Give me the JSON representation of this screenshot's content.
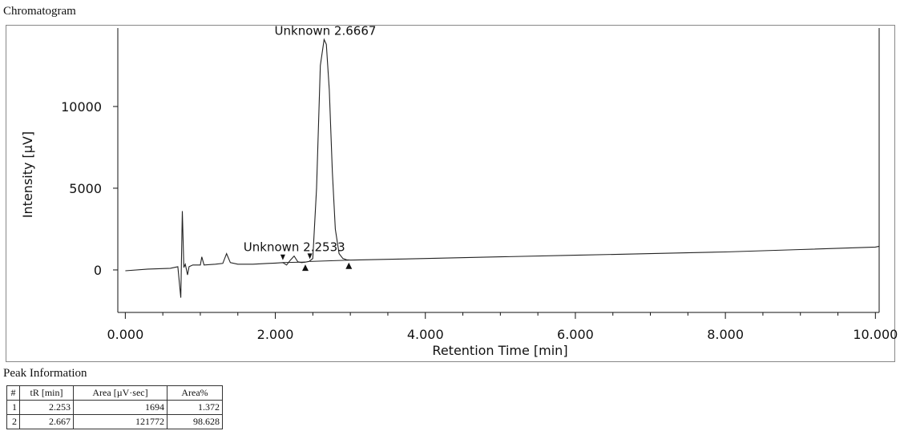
{
  "chart_data": {
    "type": "line",
    "title": "Chromatogram",
    "xlabel": "Retention Time [min]",
    "ylabel": "Intensity [µV]",
    "xlim": [
      -0.1,
      10.05
    ],
    "ylim": [
      -2600,
      14800
    ],
    "x_ticks": [
      0,
      2,
      4,
      6,
      8,
      10
    ],
    "x_tick_labels": [
      "0.000",
      "2.000",
      "4.000",
      "6.000",
      "8.000",
      "10.000"
    ],
    "y_ticks": [
      0,
      5000,
      10000
    ],
    "y_tick_labels": [
      "0",
      "5000",
      "10000"
    ],
    "grid": false,
    "series": [
      {
        "x": [
          0,
          0.3,
          0.6,
          0.7,
          0.74,
          0.76,
          0.78,
          0.8,
          0.83,
          0.85,
          0.9,
          1.0,
          1.02,
          1.05,
          1.2,
          1.3,
          1.35,
          1.4,
          1.5,
          1.7,
          1.9,
          2.0,
          2.1,
          2.15,
          2.2,
          2.25,
          2.3,
          2.35,
          2.4,
          2.45,
          2.5,
          2.55,
          2.6,
          2.65,
          2.68,
          2.72,
          2.76,
          2.8,
          2.85,
          2.9,
          2.95,
          3.0,
          3.5,
          4.0,
          5.0,
          6.0,
          7.0,
          8.0,
          9.0,
          10.0,
          10.05
        ],
        "y": [
          -50,
          50,
          100,
          200,
          -1700,
          3600,
          150,
          350,
          -300,
          200,
          300,
          300,
          800,
          300,
          350,
          400,
          1000,
          450,
          350,
          350,
          400,
          420,
          450,
          300,
          600,
          850,
          500,
          450,
          480,
          520,
          700,
          5000,
          12500,
          14100,
          13800,
          11000,
          6000,
          2500,
          1000,
          700,
          620,
          600,
          650,
          700,
          800,
          900,
          1000,
          1100,
          1250,
          1400,
          1450
        ]
      }
    ],
    "annotations": [
      {
        "text": "Unknown 2.6667",
        "x": 2.667,
        "y": 14100
      },
      {
        "text": "Unknown 2.2533",
        "x": 2.253,
        "y": 850
      }
    ],
    "peak_markers": [
      {
        "x": 2.1,
        "y": 450,
        "kind": "start"
      },
      {
        "x": 2.4,
        "y": 480,
        "kind": "end"
      },
      {
        "x": 2.46,
        "y": 520,
        "kind": "start"
      },
      {
        "x": 2.98,
        "y": 600,
        "kind": "end"
      }
    ]
  },
  "peak_info": {
    "title": "Peak Information",
    "headers": [
      "#",
      "tR [min]",
      "Area [µV·sec]",
      "Area%"
    ],
    "rows": [
      [
        "1",
        "2.253",
        "1694",
        "1.372"
      ],
      [
        "2",
        "2.667",
        "121772",
        "98.628"
      ]
    ]
  }
}
